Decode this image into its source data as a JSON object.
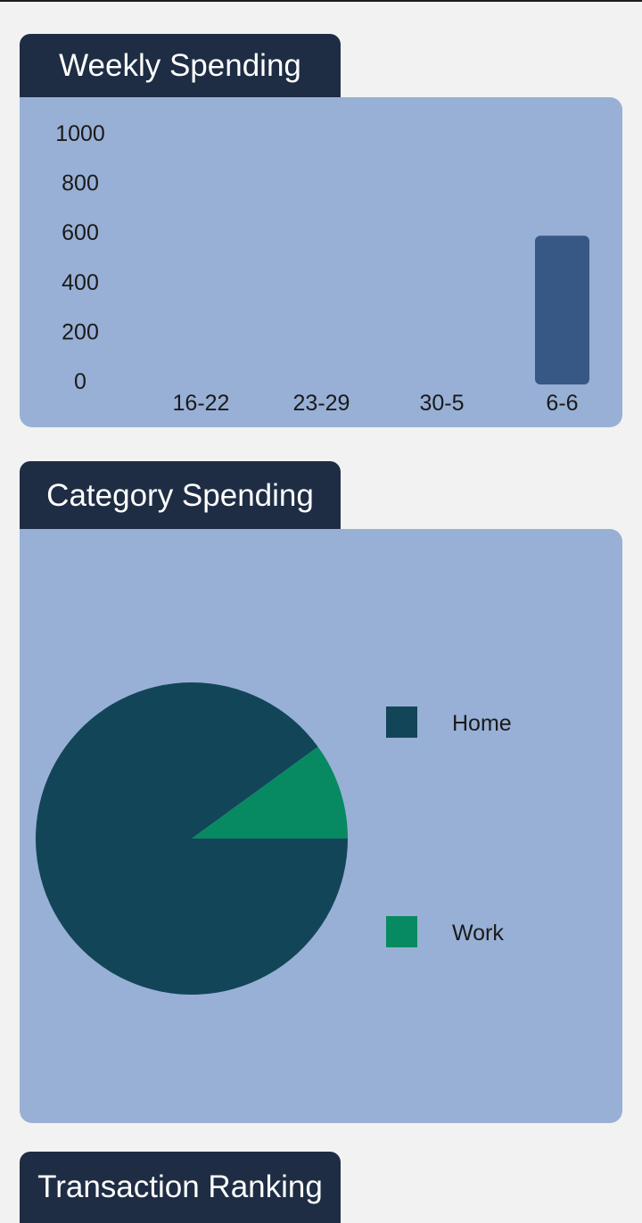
{
  "weekly": {
    "tab_label": "Weekly Spending"
  },
  "category": {
    "tab_label": "Category Spending"
  },
  "ranking": {
    "tab_label": "Transaction Ranking"
  },
  "colors": {
    "tab_bg": "#1e2d44",
    "panel_bg": "#98b0d5",
    "bar": "#375784",
    "home": "#134559",
    "work": "#078a61",
    "page_bg": "#f2f2f2"
  },
  "chart_data": [
    {
      "type": "bar",
      "categories": [
        "16-22",
        "23-29",
        "30-5",
        "6-6"
      ],
      "values": [
        0,
        0,
        0,
        600
      ],
      "ylim": [
        0,
        1000
      ],
      "yticks": [
        "0",
        "200",
        "400",
        "600",
        "800",
        "1000"
      ],
      "grid": false
    },
    {
      "type": "pie",
      "labels": [
        "Home",
        "Work"
      ],
      "values": [
        90,
        10
      ],
      "legend": "right"
    }
  ]
}
